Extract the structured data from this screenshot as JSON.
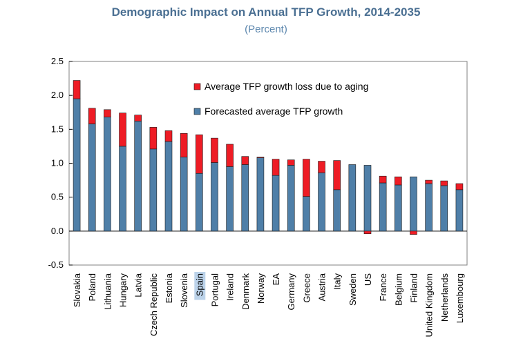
{
  "chart_data": {
    "type": "bar",
    "stacked": true,
    "title": "Demographic Impact on Annual TFP Growth, 2014-2035",
    "subtitle": "(Percent)",
    "xlabel": "",
    "ylabel": "",
    "ylim": [
      -0.5,
      2.5
    ],
    "yticks": [
      -0.5,
      0.0,
      0.5,
      1.0,
      1.5,
      2.0,
      2.5
    ],
    "ytick_labels": [
      "-0.5",
      "0.0",
      "0.5",
      "1.0",
      "1.5",
      "2.0",
      "2.5"
    ],
    "grid": false,
    "legend_position": "top-center",
    "highlighted_category": "Spain",
    "categories": [
      "Slovakia",
      "Poland",
      "Lithuania",
      "Hungary",
      "Latvia",
      "Czech Republic",
      "Estonia",
      "Slovenia",
      "Spain",
      "Portugal",
      "Ireland",
      "Denmark",
      "Norway",
      "EA",
      "Germany",
      "Greece",
      "Austria",
      "Italy",
      "Sweden",
      "US",
      "France",
      "Belgium",
      "Finland",
      "United Kingdom",
      "Netherlands",
      "Luxembourg"
    ],
    "series": [
      {
        "name": "Forecasted average TFP growth",
        "color": "#4f7fa8",
        "values": [
          1.95,
          1.58,
          1.68,
          1.25,
          1.62,
          1.21,
          1.32,
          1.09,
          0.85,
          1.01,
          0.95,
          0.98,
          1.08,
          0.82,
          0.97,
          0.51,
          0.86,
          0.61,
          0.98,
          0.97,
          0.71,
          0.68,
          0.8,
          0.7,
          0.67,
          0.61
        ]
      },
      {
        "name": "Average TFP growth loss due to aging",
        "color": "#ee1c25",
        "values": [
          0.27,
          0.23,
          0.11,
          0.49,
          0.09,
          0.32,
          0.16,
          0.35,
          0.57,
          0.36,
          0.33,
          0.12,
          0.01,
          0.24,
          0.08,
          0.55,
          0.17,
          0.43,
          0.0,
          -0.04,
          0.1,
          0.12,
          -0.05,
          0.05,
          0.07,
          0.09
        ]
      }
    ]
  }
}
